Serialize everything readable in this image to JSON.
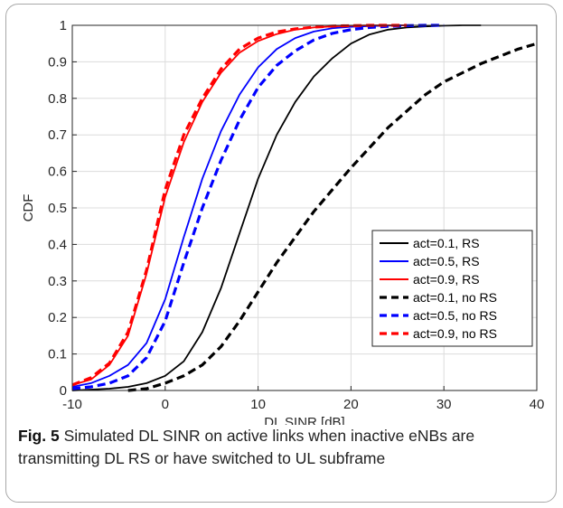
{
  "chart_data": {
    "type": "line",
    "xlabel": "DL SINR [dB]",
    "ylabel": "CDF",
    "xlim": [
      -10,
      40
    ],
    "ylim": [
      0,
      1
    ],
    "xticks": [
      -10,
      0,
      10,
      20,
      30,
      40
    ],
    "yticks": [
      0,
      0.1,
      0.2,
      0.3,
      0.4,
      0.5,
      0.6,
      0.7,
      0.8,
      0.9,
      1
    ],
    "grid": true,
    "legend_position": "lower-right",
    "series": [
      {
        "name": "act=0.1, RS",
        "color": "#000000",
        "dash": "solid",
        "x": [
          -10,
          -6,
          -4,
          -2,
          0,
          2,
          4,
          6,
          8,
          10,
          12,
          14,
          16,
          18,
          20,
          22,
          24,
          26,
          28,
          30,
          32,
          34
        ],
        "y": [
          0.0,
          0.005,
          0.01,
          0.02,
          0.04,
          0.08,
          0.16,
          0.28,
          0.43,
          0.58,
          0.7,
          0.79,
          0.86,
          0.91,
          0.95,
          0.975,
          0.988,
          0.994,
          0.997,
          0.999,
          1.0,
          1.0
        ]
      },
      {
        "name": "act=0.5, RS",
        "color": "#0000ff",
        "dash": "solid",
        "x": [
          -10,
          -8,
          -6,
          -4,
          -2,
          0,
          2,
          4,
          6,
          8,
          10,
          12,
          14,
          16,
          18,
          20,
          22,
          24,
          26
        ],
        "y": [
          0.01,
          0.02,
          0.04,
          0.07,
          0.13,
          0.25,
          0.42,
          0.58,
          0.71,
          0.81,
          0.885,
          0.935,
          0.965,
          0.983,
          0.992,
          0.996,
          0.998,
          0.999,
          1.0
        ]
      },
      {
        "name": "act=0.9, RS",
        "color": "#ff0000",
        "dash": "solid",
        "x": [
          -10,
          -8,
          -6,
          -4,
          -2,
          0,
          2,
          4,
          6,
          8,
          10,
          12,
          14,
          16,
          18,
          20,
          22,
          24,
          26
        ],
        "y": [
          0.015,
          0.03,
          0.07,
          0.15,
          0.32,
          0.53,
          0.68,
          0.79,
          0.87,
          0.925,
          0.957,
          0.976,
          0.988,
          0.994,
          0.997,
          0.999,
          1.0,
          1.0,
          1.0
        ]
      },
      {
        "name": "act=0.1, no RS",
        "color": "#000000",
        "dash": "dashed",
        "x": [
          -4,
          -2,
          0,
          2,
          4,
          6,
          8,
          10,
          12,
          14,
          16,
          18,
          20,
          22,
          24,
          26,
          28,
          30,
          32,
          34,
          36,
          38,
          40
        ],
        "y": [
          0.0,
          0.005,
          0.02,
          0.04,
          0.07,
          0.12,
          0.19,
          0.27,
          0.35,
          0.42,
          0.49,
          0.55,
          0.61,
          0.665,
          0.72,
          0.765,
          0.81,
          0.845,
          0.87,
          0.895,
          0.915,
          0.935,
          0.95
        ]
      },
      {
        "name": "act=0.5, no RS",
        "color": "#0000ff",
        "dash": "dashed",
        "x": [
          -10,
          -8,
          -6,
          -4,
          -2,
          0,
          2,
          4,
          6,
          8,
          10,
          12,
          14,
          16,
          18,
          20,
          22,
          24,
          26,
          28,
          30
        ],
        "y": [
          0.005,
          0.01,
          0.02,
          0.04,
          0.09,
          0.19,
          0.35,
          0.5,
          0.63,
          0.74,
          0.83,
          0.89,
          0.93,
          0.96,
          0.978,
          0.988,
          0.994,
          0.997,
          0.999,
          1.0,
          1.0
        ]
      },
      {
        "name": "act=0.9, no RS",
        "color": "#ff0000",
        "dash": "dashed",
        "x": [
          -10,
          -8,
          -6,
          -4,
          -2,
          0,
          2,
          4,
          6,
          8,
          10,
          12,
          14,
          16,
          18,
          20,
          22,
          24,
          26
        ],
        "y": [
          0.015,
          0.035,
          0.075,
          0.16,
          0.33,
          0.55,
          0.7,
          0.8,
          0.88,
          0.935,
          0.965,
          0.982,
          0.99,
          0.995,
          0.998,
          0.999,
          1.0,
          1.0,
          1.0
        ]
      }
    ]
  },
  "caption": {
    "label": "Fig. 5",
    "text": " Simulated DL SINR on active links when inactive eNBs are transmitting DL RS or have switched to UL subframe"
  }
}
